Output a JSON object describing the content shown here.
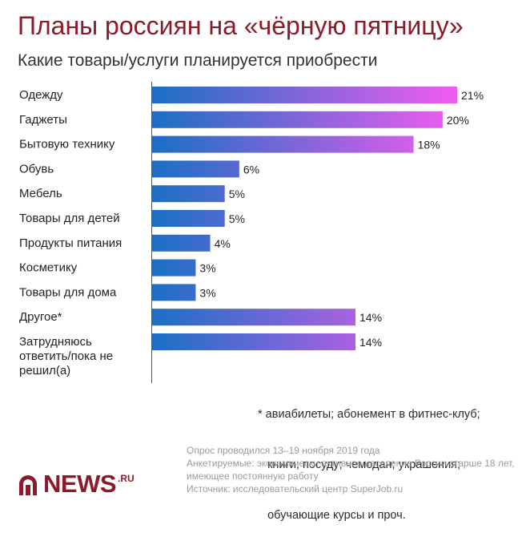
{
  "header": {
    "title": "Планы россиян на «чёрную пятницу»",
    "subtitle": "Какие товары/услуги планируется приобрести"
  },
  "chart_data": {
    "type": "bar",
    "orientation": "horizontal",
    "title": "Планы россиян на «чёрную пятницу»",
    "subtitle": "Какие товары/услуги планируется приобрести",
    "categories": [
      [
        "Одежду"
      ],
      [
        "Гаджеты"
      ],
      [
        "Бытовую технику"
      ],
      [
        "Обувь"
      ],
      [
        "Мебель"
      ],
      [
        "Товары для детей"
      ],
      [
        "Продукты питания"
      ],
      [
        "Косметику"
      ],
      [
        "Товары для дома"
      ],
      [
        "Другое*"
      ],
      [
        "Затрудняюсь",
        "ответить/пока не",
        "решил(а)"
      ]
    ],
    "values": [
      21,
      20,
      18,
      6,
      5,
      5,
      4,
      3,
      3,
      14,
      14
    ],
    "value_labels": [
      "21%",
      "20%",
      "18%",
      "6%",
      "5%",
      "5%",
      "4%",
      "3%",
      "3%",
      "14%",
      "14%"
    ],
    "unit": "%",
    "xlim": [
      0,
      21
    ],
    "grid": false,
    "colors": {
      "gradient_start": "#1a6fc4",
      "gradient_end": "#f05cf0"
    }
  },
  "footnote": [
    "* авиабилеты; абонемент в фитнес-клуб;",
    "   книги; посуду; чемодан; украшения;",
    "   обучающие курсы и проч."
  ],
  "source": [
    "Опрос проводился 13–19 ноября 2019 года",
    "Анкетируемые: экономически активное население России старше 18 лет,",
    "имеющее постоянную работу",
    "Источник: исследовательский центр SuperJob.ru"
  ],
  "logo": {
    "name": "NEWS",
    "suffix": ".RU",
    "icon": "news-ru-logo-icon",
    "color": "#8b1a2a"
  }
}
